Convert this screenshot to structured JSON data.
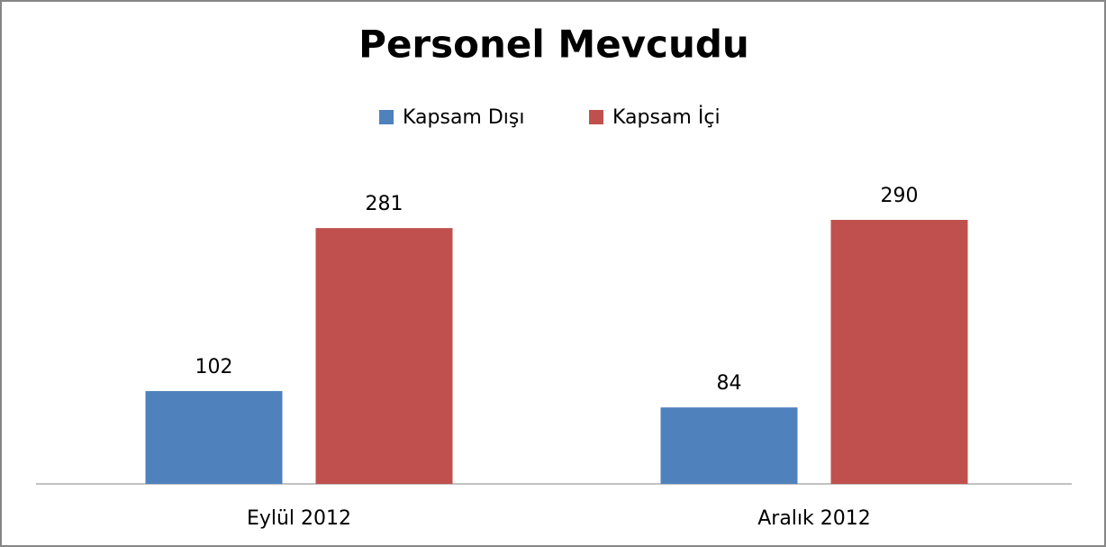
{
  "chart_data": {
    "type": "bar",
    "title": "Personel Mevcudu",
    "categories": [
      "Eylül 2012",
      "Aralık 2012"
    ],
    "series": [
      {
        "name": "Kapsam Dışı",
        "color": "#4f81bd",
        "values": [
          102,
          84
        ]
      },
      {
        "name": "Kapsam İçi",
        "color": "#c0504d",
        "values": [
          281,
          290
        ]
      }
    ],
    "legend": "top"
  }
}
